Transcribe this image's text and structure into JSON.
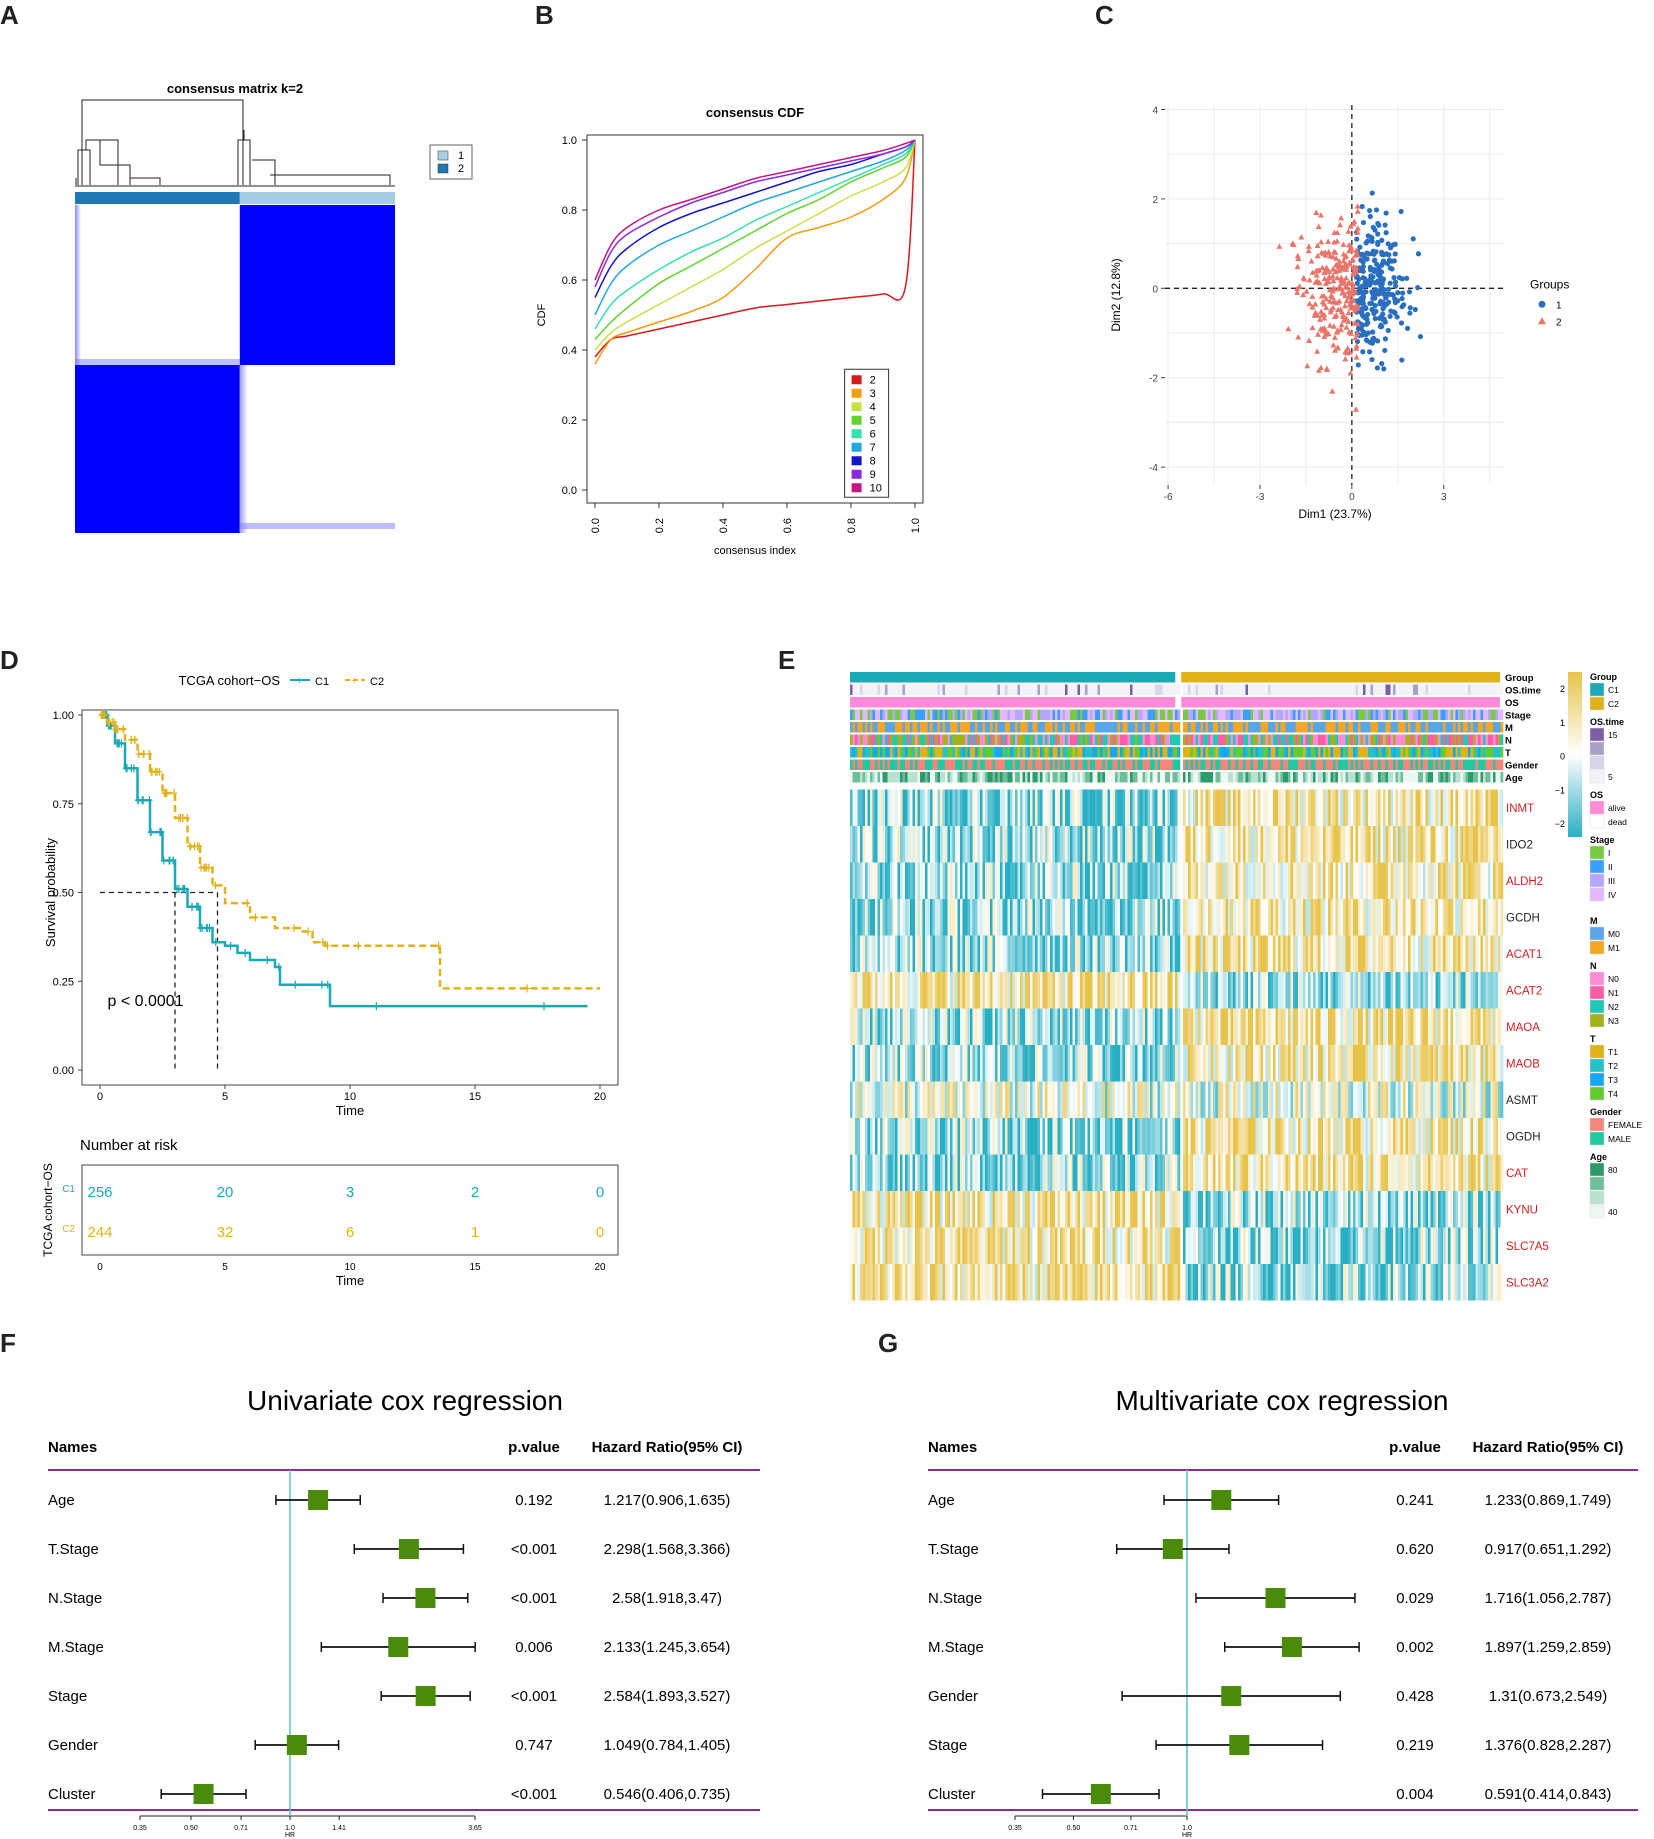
{
  "panels": {
    "A": "A",
    "B": "B",
    "C": "C",
    "D": "D",
    "E": "E",
    "F": "F",
    "G": "G"
  },
  "chart_data": [
    {
      "panel": "A",
      "type": "heatmap",
      "title": "consensus matrix k=2",
      "legend": [
        {
          "label": "1",
          "color": "#a6cee3"
        },
        {
          "label": "2",
          "color": "#1f78b4"
        }
      ],
      "blocks": [
        {
          "rows": "2",
          "cols": "2",
          "value": 0
        },
        {
          "rows": "2",
          "cols": "1",
          "value": 1
        },
        {
          "rows": "1",
          "cols": "2",
          "value": 1
        },
        {
          "rows": "1",
          "cols": "1",
          "value": 0
        }
      ],
      "colors": {
        "high": "#0000ff",
        "low": "#ffffff"
      }
    },
    {
      "panel": "B",
      "type": "line",
      "title": "consensus CDF",
      "xlabel": "consensus index",
      "ylabel": "CDF",
      "xlim": [
        0,
        1
      ],
      "ylim": [
        0,
        1
      ],
      "xticks": [
        "0.0",
        "0.2",
        "0.4",
        "0.6",
        "0.8",
        "1.0"
      ],
      "yticks": [
        "0.0",
        "0.2",
        "0.4",
        "0.6",
        "0.8",
        "1.0"
      ],
      "x": [
        0,
        0.05,
        0.1,
        0.2,
        0.3,
        0.4,
        0.5,
        0.6,
        0.7,
        0.8,
        0.9,
        0.97,
        1.0
      ],
      "series": [
        {
          "name": "2",
          "color": "#d7191c",
          "values": [
            0.38,
            0.43,
            0.44,
            0.46,
            0.48,
            0.5,
            0.52,
            0.53,
            0.54,
            0.55,
            0.56,
            0.58,
            1.0
          ]
        },
        {
          "name": "3",
          "color": "#f39c12",
          "values": [
            0.36,
            0.43,
            0.45,
            0.48,
            0.51,
            0.55,
            0.63,
            0.72,
            0.75,
            0.78,
            0.83,
            0.89,
            1.0
          ]
        },
        {
          "name": "4",
          "color": "#c6e14b",
          "values": [
            0.4,
            0.45,
            0.48,
            0.53,
            0.58,
            0.63,
            0.69,
            0.74,
            0.79,
            0.84,
            0.88,
            0.92,
            1.0
          ]
        },
        {
          "name": "5",
          "color": "#5fd42d",
          "values": [
            0.43,
            0.48,
            0.52,
            0.59,
            0.64,
            0.69,
            0.74,
            0.79,
            0.83,
            0.88,
            0.92,
            0.95,
            1.0
          ]
        },
        {
          "name": "6",
          "color": "#33e0b0",
          "values": [
            0.46,
            0.53,
            0.57,
            0.63,
            0.68,
            0.72,
            0.77,
            0.81,
            0.85,
            0.89,
            0.93,
            0.96,
            1.0
          ]
        },
        {
          "name": "7",
          "color": "#22a7e0",
          "values": [
            0.5,
            0.59,
            0.64,
            0.7,
            0.74,
            0.78,
            0.82,
            0.85,
            0.88,
            0.91,
            0.94,
            0.97,
            1.0
          ]
        },
        {
          "name": "8",
          "color": "#1414c8",
          "values": [
            0.55,
            0.64,
            0.69,
            0.75,
            0.79,
            0.82,
            0.85,
            0.88,
            0.91,
            0.93,
            0.96,
            0.98,
            1.0
          ]
        },
        {
          "name": "9",
          "color": "#8a2be2",
          "values": [
            0.58,
            0.68,
            0.73,
            0.78,
            0.82,
            0.85,
            0.88,
            0.9,
            0.92,
            0.94,
            0.96,
            0.98,
            1.0
          ]
        },
        {
          "name": "10",
          "color": "#c71585",
          "values": [
            0.6,
            0.7,
            0.75,
            0.8,
            0.83,
            0.86,
            0.89,
            0.91,
            0.93,
            0.95,
            0.97,
            0.99,
            1.0
          ]
        }
      ]
    },
    {
      "panel": "C",
      "type": "scatter",
      "xlabel": "Dim1 (23.7%)",
      "ylabel": "Dim2 (12.8%)",
      "xlim": [
        -6.1,
        5
      ],
      "ylim": [
        -4.4,
        4.1
      ],
      "xticks": [
        "-6",
        "-3",
        "0",
        "3"
      ],
      "yticks": [
        "-4",
        "-2",
        "0",
        "2",
        "4"
      ],
      "legend_title": "Groups",
      "series": [
        {
          "name": "1",
          "color": "#2a6fbf",
          "shape": "circle"
        },
        {
          "name": "2",
          "color": "#e9746a",
          "shape": "triangle"
        }
      ],
      "seed": 17
    },
    {
      "panel": "D",
      "type": "line",
      "title": "TCGA cohort−OS",
      "xlabel": "Time",
      "ylabel": "Survival probability",
      "xlim": [
        0,
        20
      ],
      "ylim": [
        0,
        1
      ],
      "xticks": [
        "0",
        "5",
        "10",
        "15",
        "20"
      ],
      "yticks": [
        "0.00",
        "0.25",
        "0.50",
        "0.75",
        "1.00"
      ],
      "pvalue": "p < 0.0001",
      "medians": [
        3.0,
        4.7
      ],
      "series": [
        {
          "name": "C1",
          "color": "#1aa9b5",
          "dash": false,
          "x": [
            0,
            0.3,
            0.6,
            1.0,
            1.5,
            2.0,
            2.5,
            3.0,
            3.5,
            4.0,
            4.5,
            5.0,
            5.5,
            6.0,
            7.0,
            7.2,
            8.0,
            9.0,
            9.2,
            12.0,
            19.5
          ],
          "y": [
            1.0,
            0.97,
            0.92,
            0.85,
            0.76,
            0.67,
            0.59,
            0.51,
            0.46,
            0.4,
            0.36,
            0.35,
            0.33,
            0.31,
            0.29,
            0.24,
            0.24,
            0.24,
            0.18,
            0.18,
            0.18
          ]
        },
        {
          "name": "C2",
          "color": "#e0b21a",
          "dash": true,
          "x": [
            0,
            0.3,
            0.6,
            1.0,
            1.5,
            2.0,
            2.5,
            3.0,
            3.5,
            4.0,
            4.5,
            5.0,
            6.0,
            7.0,
            8.0,
            8.5,
            9.0,
            10.0,
            13.5,
            13.6,
            20.0
          ],
          "y": [
            1.0,
            0.98,
            0.96,
            0.93,
            0.89,
            0.84,
            0.78,
            0.71,
            0.63,
            0.57,
            0.52,
            0.47,
            0.43,
            0.4,
            0.39,
            0.36,
            0.35,
            0.35,
            0.35,
            0.23,
            0.23
          ]
        }
      ],
      "risk_table": {
        "title": "Number at risk",
        "ylabel": "TCGA cohort−OS",
        "xlabel": "Time",
        "rows": [
          {
            "name": "C1",
            "color": "#1aa9b5",
            "values": [
              "256",
              "20",
              "3",
              "2",
              "0"
            ]
          },
          {
            "name": "C2",
            "color": "#e0b21a",
            "values": [
              "244",
              "32",
              "6",
              "1",
              "0"
            ]
          }
        ]
      }
    },
    {
      "panel": "E",
      "type": "heatmap",
      "annotation_rows": [
        "Group",
        "OS.time",
        "OS",
        "Stage",
        "M",
        "N",
        "T",
        "Gender",
        "Age"
      ],
      "genes": [
        {
          "name": "INMT",
          "red": true,
          "dir": 1
        },
        {
          "name": "IDO2",
          "red": false,
          "dir": 1
        },
        {
          "name": "ALDH2",
          "red": true,
          "dir": 1
        },
        {
          "name": "GCDH",
          "red": false,
          "dir": 1
        },
        {
          "name": "ACAT1",
          "red": true,
          "dir": 1
        },
        {
          "name": "ACAT2",
          "red": true,
          "dir": -1
        },
        {
          "name": "MAOA",
          "red": true,
          "dir": 1
        },
        {
          "name": "MAOB",
          "red": true,
          "dir": 1
        },
        {
          "name": "ASMT",
          "red": false,
          "dir": 0
        },
        {
          "name": "OGDH",
          "red": false,
          "dir": 1
        },
        {
          "name": "CAT",
          "red": true,
          "dir": 1
        },
        {
          "name": "KYNU",
          "red": true,
          "dir": -1
        },
        {
          "name": "SLC7A5",
          "red": true,
          "dir": -1
        },
        {
          "name": "SLC3A2",
          "red": true,
          "dir": -1
        }
      ],
      "scale": {
        "ticks": [
          "2",
          "1",
          "0",
          "−1",
          "−2"
        ],
        "high": "#e8c34a",
        "mid": "#ffffff",
        "low": "#29afc4"
      },
      "legends": [
        {
          "title": "Group",
          "items": [
            {
              "label": "C1",
              "color": "#1aa9b5"
            },
            {
              "label": "C2",
              "color": "#e0b21a"
            }
          ]
        },
        {
          "title": "OS.time",
          "items": [
            {
              "label": "15",
              "color": "#7b5ea7"
            },
            {
              "label": "",
              "color": "#a9a0c9"
            },
            {
              "label": "",
              "color": "#d8d4ea"
            },
            {
              "label": "5",
              "color": "#f3f2f9"
            }
          ]
        },
        {
          "title": "OS",
          "items": [
            {
              "label": "alive",
              "color": "#ff8ad8"
            },
            {
              "label": "dead",
              "color": "#ffffff"
            }
          ]
        },
        {
          "title": "Stage",
          "items": [
            {
              "label": "I",
              "color": "#7ac943"
            },
            {
              "label": "II",
              "color": "#3aa0ff"
            },
            {
              "label": "III",
              "color": "#b7a6ff"
            },
            {
              "label": "IV",
              "color": "#e3b8ff"
            }
          ]
        },
        {
          "title": "M",
          "items": [
            {
              "label": "M0",
              "color": "#58a6e8"
            },
            {
              "label": "M1",
              "color": "#f5a623"
            }
          ]
        },
        {
          "title": "N",
          "items": [
            {
              "label": "N0",
              "color": "#ff8ad8"
            },
            {
              "label": "N1",
              "color": "#ff5ca8"
            },
            {
              "label": "N2",
              "color": "#20c9b5"
            },
            {
              "label": "N3",
              "color": "#a4b21a"
            }
          ]
        },
        {
          "title": "T",
          "items": [
            {
              "label": "T1",
              "color": "#e0b21a"
            },
            {
              "label": "T2",
              "color": "#23c1c9"
            },
            {
              "label": "T3",
              "color": "#15a6f5"
            },
            {
              "label": "T4",
              "color": "#62cc2e"
            }
          ]
        },
        {
          "title": "Gender",
          "items": [
            {
              "label": "FEMALE",
              "color": "#f4857a"
            },
            {
              "label": "MALE",
              "color": "#22c9a0"
            }
          ]
        },
        {
          "title": "Age",
          "items": [
            {
              "label": "80",
              "color": "#2c9a6a"
            },
            {
              "label": "",
              "color": "#6cbf98"
            },
            {
              "label": "",
              "color": "#b8e2cf"
            },
            {
              "label": "40",
              "color": "#eef8f3"
            }
          ]
        }
      ]
    },
    {
      "panel": "F",
      "type": "table",
      "title": "Univariate cox regression",
      "headers": [
        "Names",
        "p.value",
        "Hazard Ratio(95% CI)"
      ],
      "xticks": [
        "0.35",
        "0.50",
        "0.71",
        "1.0",
        "1.41",
        "3.65"
      ],
      "xlabel": "HR",
      "rows": [
        {
          "name": "Age",
          "p": "0.192",
          "hr_text": "1.217(0.906,1.635)",
          "hr": 1.217,
          "lo": 0.906,
          "hi": 1.635
        },
        {
          "name": "T.Stage",
          "p": "<0.001",
          "hr_text": "2.298(1.568,3.366)",
          "hr": 2.298,
          "lo": 1.568,
          "hi": 3.366
        },
        {
          "name": "N.Stage",
          "p": "<0.001",
          "hr_text": "2.58(1.918,3.47)",
          "hr": 2.58,
          "lo": 1.918,
          "hi": 3.47
        },
        {
          "name": "M.Stage",
          "p": "0.006",
          "hr_text": "2.133(1.245,3.654)",
          "hr": 2.133,
          "lo": 1.245,
          "hi": 3.654
        },
        {
          "name": "Stage",
          "p": "<0.001",
          "hr_text": "2.584(1.893,3.527)",
          "hr": 2.584,
          "lo": 1.893,
          "hi": 3.527
        },
        {
          "name": "Gender",
          "p": "0.747",
          "hr_text": "1.049(0.784,1.405)",
          "hr": 1.049,
          "lo": 0.784,
          "hi": 1.405
        },
        {
          "name": "Cluster",
          "p": "<0.001",
          "hr_text": "0.546(0.406,0.735)",
          "hr": 0.546,
          "lo": 0.406,
          "hi": 0.735
        }
      ]
    },
    {
      "panel": "G",
      "type": "table",
      "title": "Multivariate cox regression",
      "headers": [
        "Names",
        "p.value",
        "Hazard Ratio(95% CI)"
      ],
      "xticks": [
        "0.35",
        "0.50",
        "0.71",
        "1.0"
      ],
      "xlabel": "HR",
      "rows": [
        {
          "name": "Age",
          "p": "0.241",
          "hr_text": "1.233(0.869,1.749)",
          "hr": 1.233,
          "lo": 0.869,
          "hi": 1.749
        },
        {
          "name": "T.Stage",
          "p": "0.620",
          "hr_text": "0.917(0.651,1.292)",
          "hr": 0.917,
          "lo": 0.651,
          "hi": 1.292
        },
        {
          "name": "N.Stage",
          "p": "0.029",
          "hr_text": "1.716(1.056,2.787)",
          "hr": 1.716,
          "lo": 1.056,
          "hi": 2.787
        },
        {
          "name": "M.Stage",
          "p": "0.002",
          "hr_text": "1.897(1.259,2.859)",
          "hr": 1.897,
          "lo": 1.259,
          "hi": 2.859
        },
        {
          "name": "Gender",
          "p": "0.428",
          "hr_text": "1.31(0.673,2.549)",
          "hr": 1.31,
          "lo": 0.673,
          "hi": 2.549
        },
        {
          "name": "Stage",
          "p": "0.219",
          "hr_text": "1.376(0.828,2.287)",
          "hr": 1.376,
          "lo": 0.828,
          "hi": 2.287
        },
        {
          "name": "Cluster",
          "p": "0.004",
          "hr_text": "0.591(0.414,0.843)",
          "hr": 0.591,
          "lo": 0.414,
          "hi": 0.843
        }
      ]
    }
  ]
}
